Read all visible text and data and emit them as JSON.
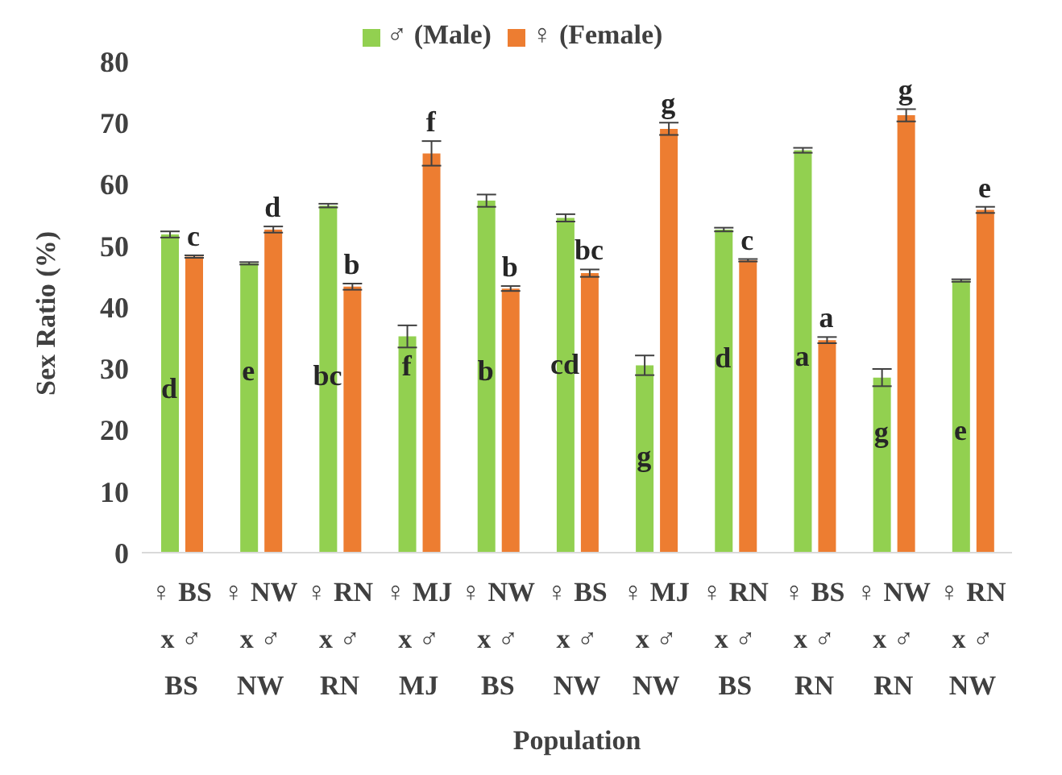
{
  "chart_data": {
    "type": "bar",
    "xlabel": "Population",
    "ylabel": "Sex Ratio (%)",
    "categories": [
      "♀ BS\nx ♂\nBS",
      "♀ NW\nx ♂\nNW",
      "♀ RN\nx ♂\nRN",
      "♀ MJ\nx ♂\nMJ",
      "♀ NW\nx ♂\nBS",
      "♀ BS\nx ♂\nNW",
      "♀ MJ\nx ♂\nNW",
      "♀ RN\nx ♂\nBS",
      "♀ BS\nx ♂\nRN",
      "♀ NW\nx ♂\nRN",
      "♀ RN\nx ♂\nNW"
    ],
    "series": [
      {
        "name": "♂ (Male)",
        "color": "#92d050",
        "values": [
          51.8,
          47.1,
          56.5,
          35.2,
          57.3,
          54.5,
          30.5,
          52.6,
          65.5,
          28.5,
          44.3
        ],
        "errors": [
          0.5,
          0.2,
          0.3,
          1.8,
          1.0,
          0.6,
          1.6,
          0.3,
          0.4,
          1.4,
          0.2
        ]
      },
      {
        "name": "♀ (Female)",
        "color": "#ed7d31",
        "values": [
          48.2,
          52.6,
          43.3,
          65.0,
          43.0,
          45.5,
          69.0,
          47.6,
          34.6,
          71.2,
          55.8
        ],
        "errors": [
          0.2,
          0.5,
          0.5,
          2.0,
          0.4,
          0.6,
          1.0,
          0.2,
          0.5,
          1.0,
          0.5
        ]
      }
    ],
    "ylim": [
      0,
      80
    ],
    "yticks": [
      0,
      10,
      20,
      30,
      40,
      50,
      60,
      70,
      80
    ],
    "grid": false,
    "legend": "top",
    "annotations": [
      {
        "text": "d",
        "x": "♀ BS\nx ♂\nBS",
        "y": 26.8
      },
      {
        "text": "e",
        "x": "♀ NW\nx ♂\nNW",
        "y": 29.7
      },
      {
        "text": "bc",
        "x": "♀ RN\nx ♂\nRN",
        "y": 28.9
      },
      {
        "text": "f",
        "x": "♀ MJ\nx ♂\nMJ",
        "y": 30.4
      },
      {
        "text": "b",
        "x": "♀ NW\nx ♂\nBS",
        "y": 29.7
      },
      {
        "text": "cd",
        "x": "♀ BS\nx ♂\nNW",
        "y": 30.7
      },
      {
        "text": "g",
        "x": "♀ MJ\nx ♂\nNW",
        "y": 15.7
      },
      {
        "text": "d",
        "x": "♀ RN\nx ♂\nBS",
        "y": 31.8
      },
      {
        "text": "a",
        "x": "♀ BS\nx ♂\nRN",
        "y": 32
      },
      {
        "text": "g",
        "x": "♀ NW\nx ♂\nRN",
        "y": 19.7
      },
      {
        "text": "e",
        "x": "♀ RN\nx ♂\nNW",
        "y": 20
      },
      {
        "text": "c",
        "x": "♀ BS\nx ♂\nBS",
        "y": 48.4
      },
      {
        "text": "d",
        "x": "♀ NW\nx ♂\nNW",
        "y": 53.1
      },
      {
        "text": "b",
        "x": "♀ RN\nx ♂\nRN",
        "y": 43.8
      },
      {
        "text": "f",
        "x": "♀ MJ\nx ♂\nMJ",
        "y": 67
      },
      {
        "text": "b",
        "x": "♀ NW\nx ♂\nBS",
        "y": 43.4
      },
      {
        "text": "bc",
        "x": "♀ BS\nx ♂\nNW",
        "y": 46.1
      },
      {
        "text": "g",
        "x": "♀ MJ\nx ♂\nNW",
        "y": 70
      },
      {
        "text": "c",
        "x": "♀ RN\nx ♂\nBS",
        "y": 47.8
      },
      {
        "text": "a",
        "x": "♀ BS\nx ♂\nRN",
        "y": 35.1
      },
      {
        "text": "g",
        "x": "♀ NW\nx ♂\nRN",
        "y": 72.2
      },
      {
        "text": "e",
        "x": "♀ RN\nx ♂\nNW",
        "y": 56.3
      }
    ]
  }
}
